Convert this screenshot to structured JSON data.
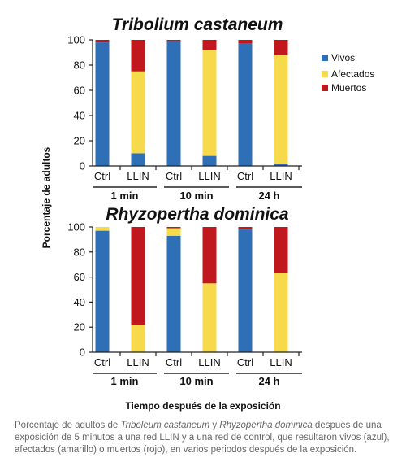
{
  "colors": {
    "vivos": "#2f6fb5",
    "afectados": "#f7d94c",
    "muertos": "#c0181e"
  },
  "legend": {
    "items": [
      "Vivos",
      "Afectados",
      "Muertos"
    ],
    "placement": "right"
  },
  "y_axis_label": "Porcentaje de adultos",
  "x_axis_label": "Tiempo después de la exposición",
  "caption": {
    "part1": "Porcentaje de adultos de ",
    "species1": "Triboleum castaneum",
    "part2": " y ",
    "species2": "Rhyzopertha dominica",
    "part3": " después de una exposición de 5 minutos a una red LLIN y a una red de control, que resultaron vivos (azul), afectados (amarillo) o muertos (rojo), en varios periodos después de la exposición."
  },
  "chart_data": [
    {
      "type": "bar",
      "stacked": true,
      "title": "Tribolium castaneum",
      "ylim": [
        0,
        100
      ],
      "yticks": [
        0,
        20,
        40,
        60,
        80,
        100
      ],
      "groups": [
        "1 min",
        "10 min",
        "24 h"
      ],
      "categories": [
        "Ctrl",
        "LLIN",
        "Ctrl",
        "LLIN",
        "Ctrl",
        "LLIN"
      ],
      "series": [
        {
          "name": "Vivos",
          "values": [
            98,
            10,
            99,
            8,
            97,
            2
          ]
        },
        {
          "name": "Afectados",
          "values": [
            0,
            65,
            0,
            84,
            0,
            86
          ]
        },
        {
          "name": "Muertos",
          "values": [
            2,
            25,
            1,
            8,
            3,
            12
          ]
        }
      ]
    },
    {
      "type": "bar",
      "stacked": true,
      "title": "Rhyzopertha dominica",
      "ylim": [
        0,
        100
      ],
      "yticks": [
        0,
        20,
        40,
        60,
        80,
        100
      ],
      "groups": [
        "1 min",
        "10 min",
        "24 h"
      ],
      "categories": [
        "Ctrl",
        "LLIN",
        "Ctrl",
        "LLIN",
        "Ctrl",
        "LLIN"
      ],
      "series": [
        {
          "name": "Vivos",
          "values": [
            97,
            0,
            93,
            0,
            98,
            0
          ]
        },
        {
          "name": "Afectados",
          "values": [
            3,
            22,
            6,
            55,
            0,
            63
          ]
        },
        {
          "name": "Muertos",
          "values": [
            0,
            78,
            1,
            45,
            2,
            37
          ]
        }
      ]
    }
  ]
}
